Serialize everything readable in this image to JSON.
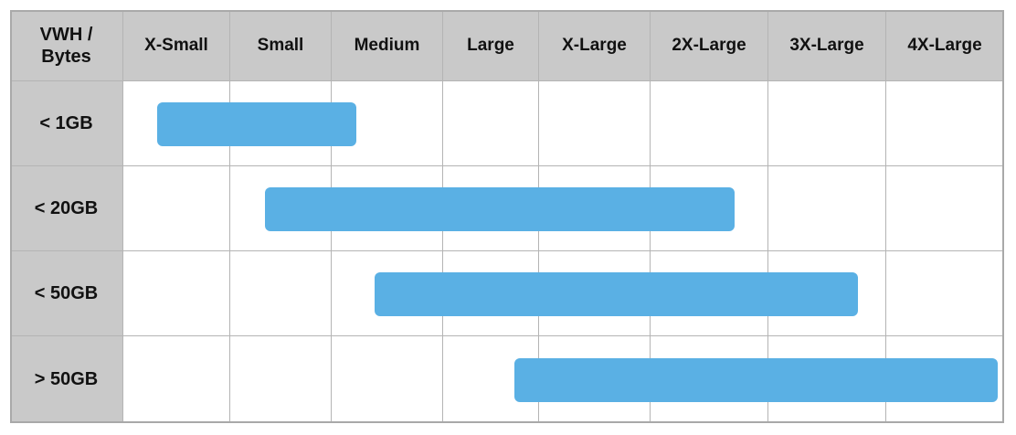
{
  "header": {
    "corner_line1": "VWH /",
    "corner_line2": "Bytes",
    "columns": [
      "X-Small",
      "Small",
      "Medium",
      "Large",
      "X-Large",
      "2X-Large",
      "3X-Large",
      "4X-Large"
    ]
  },
  "rows": [
    {
      "label": "< 1GB",
      "range_from": "X-Small",
      "range_to": "Medium"
    },
    {
      "label": "< 20GB",
      "range_from": "Small",
      "range_to": "2X-Large"
    },
    {
      "label": "< 50GB",
      "range_from": "Medium",
      "range_to": "3X-Large"
    },
    {
      "label": "> 50GB",
      "range_from": "Large",
      "range_to": "4X-Large"
    }
  ],
  "colors": {
    "header_bg": "#c9c9c9",
    "grid_line": "#b4b4b4",
    "bar": "#5ab0e4"
  }
}
